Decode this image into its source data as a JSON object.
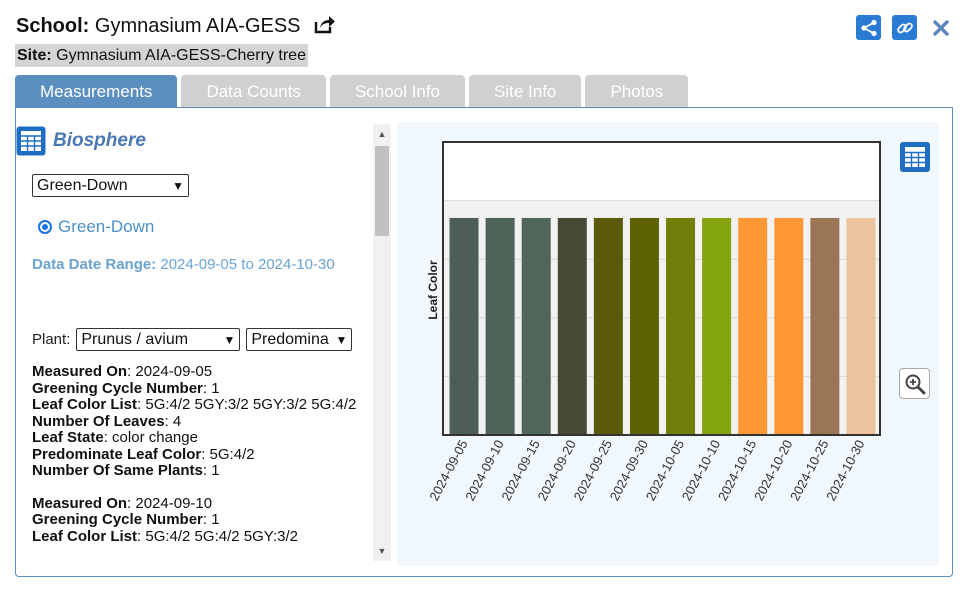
{
  "header": {
    "school_label": "School:",
    "school_name": "Gymnasium AIA-GESS",
    "site_label": "Site:",
    "site_name": "Gymnasium AIA-GESS-Cherry tree"
  },
  "tabs": [
    {
      "label": "Measurements",
      "active": true
    },
    {
      "label": "Data Counts",
      "active": false
    },
    {
      "label": "School Info",
      "active": false
    },
    {
      "label": "Site Info",
      "active": false
    },
    {
      "label": "Photos",
      "active": false
    }
  ],
  "biosphere": {
    "title": "Biosphere",
    "protocol_select": "Green-Down",
    "radio_label": "Green-Down",
    "date_range_label": "Data Date Range:",
    "date_range_value": "2024-09-05 to 2024-10-30",
    "plant_label": "Plant:",
    "plant_select": "Prunus / avium",
    "color_select": "Predomina"
  },
  "records": [
    {
      "fields": [
        {
          "label": "Measured On",
          "value": "2024-09-05"
        },
        {
          "label": "Greening Cycle Number",
          "value": "1"
        },
        {
          "label": "Leaf Color List",
          "value": "5G:4/2 5GY:3/2 5GY:3/2 5G:4/2"
        },
        {
          "label": "Number Of Leaves",
          "value": "4"
        },
        {
          "label": "Leaf State",
          "value": "color change"
        },
        {
          "label": "Predominate Leaf Color",
          "value": "5G:4/2"
        },
        {
          "label": "Number Of Same Plants",
          "value": "1"
        }
      ]
    },
    {
      "fields": [
        {
          "label": "Measured On",
          "value": "2024-09-10"
        },
        {
          "label": "Greening Cycle Number",
          "value": "1"
        },
        {
          "label": "Leaf Color List",
          "value": "5G:4/2 5G:4/2 5GY:3/2"
        }
      ]
    }
  ],
  "colors": {
    "accent": "#5b8fc0",
    "link": "#2a7bd3"
  },
  "chart_data": {
    "type": "bar",
    "ylabel": "Leaf Color",
    "categories": [
      "2024-09-05",
      "2024-09-10",
      "2024-09-15",
      "2024-09-20",
      "2024-09-25",
      "2024-09-30",
      "2024-10-05",
      "2024-10-10",
      "2024-10-15",
      "2024-10-20",
      "2024-10-25",
      "2024-10-30"
    ],
    "values": [
      1,
      1,
      1,
      1,
      1,
      1,
      1,
      1,
      1,
      1,
      1,
      1
    ],
    "ylim": [
      0,
      1.35
    ],
    "grid": true,
    "bar_colors": [
      "#4d5e56",
      "#4f6358",
      "#4f6659",
      "#474937",
      "#5a5a0a",
      "#5e6203",
      "#727e0a",
      "#83a40f",
      "#fd9835",
      "#fd9835",
      "#9b7655",
      "#ebc49e"
    ]
  }
}
